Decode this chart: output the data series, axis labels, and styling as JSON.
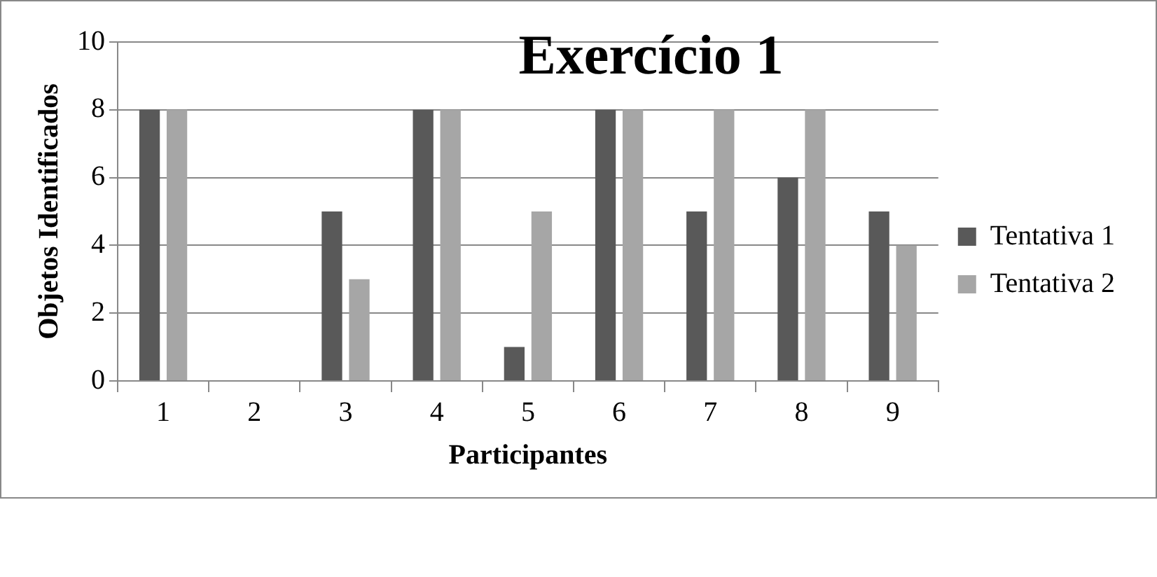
{
  "chart_data": {
    "type": "bar",
    "title": "Exercício 1",
    "xlabel": "Participantes",
    "ylabel": "Objetos Identificados",
    "categories": [
      "1",
      "2",
      "3",
      "4",
      "5",
      "6",
      "7",
      "8",
      "9"
    ],
    "series": [
      {
        "name": "Tentativa 1",
        "color": "#595959",
        "values": [
          8,
          0,
          5,
          8,
          1,
          8,
          5,
          6,
          5
        ]
      },
      {
        "name": "Tentativa 2",
        "color": "#a6a6a6",
        "values": [
          8,
          0,
          3,
          8,
          5,
          8,
          8,
          8,
          4
        ]
      }
    ],
    "ylim": [
      0,
      10
    ],
    "yticks": [
      0,
      2,
      4,
      6,
      8,
      10
    ],
    "grid": "y",
    "legend": "right"
  }
}
